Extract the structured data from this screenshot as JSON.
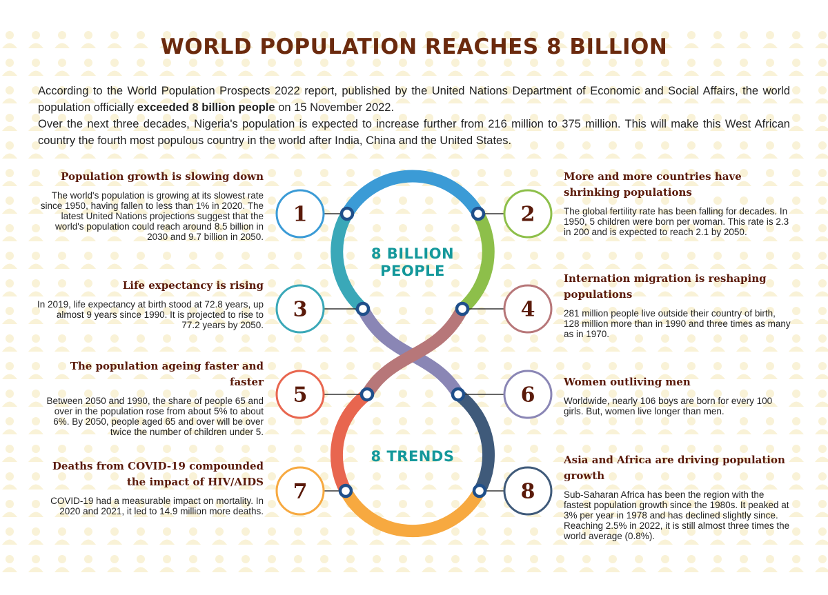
{
  "title": "WORLD POPULATION REACHES 8 BILLION",
  "intro": {
    "paragraph_1": [
      "According to the World Population Prospects 2022 report, published by the United Nations Department of Economic and Social Affairs, the world population officially ",
      "exceeded 8 billion people",
      " on 15 November 2022."
    ],
    "paragraph_2": "Over the next three decades, Nigeria's population is expected to increase further from 216 million to 375 million. This will make this West African country the fourth most populous country in the world after India, China and the United States."
  },
  "center": {
    "top_label": "8 BILLION PEOPLE",
    "bottom_label": "8 TRENDS"
  },
  "trends": [
    {
      "number": 1,
      "heading": "Population growth is slowing down",
      "body": "The world's population is growing at its slowest rate since 1950, having fallen to less than 1% in 2020. The latest United Nations projections suggest that the world's population could reach around 8.5 billion in 2030 and 9.7 billion in 2050."
    },
    {
      "number": 2,
      "heading": "More and more countries have shrinking populations",
      "body": "The global fertility rate has been falling for decades. In 1950, 5 children were born per woman. This rate is 2.3 in 200 and is expected to reach 2.1 by 2050."
    },
    {
      "number": 3,
      "heading": "Life expectancy is rising",
      "body": "In 2019, life expectancy at birth stood at 72.8 years, up almost 9 years since 1990. It is projected to rise to 77.2 years by 2050."
    },
    {
      "number": 4,
      "heading": "Internation migration is reshaping populations",
      "body": "281 million people live outside their country of birth, 128 million more than in 1990 and three times as many as in 1970."
    },
    {
      "number": 5,
      "heading": "The population ageing faster and faster",
      "body": "Between 2050 and 1990, the share of people 65 and over in the population rose from about 5% to about 6%. By 2050, people aged 65 and over will be over twice the number of children under 5."
    },
    {
      "number": 6,
      "heading": "Women outliving men",
      "body": "Worldwide, nearly 106 boys are born for every 100 girls. But, women live longer than men."
    },
    {
      "number": 7,
      "heading": "Deaths from COVID-19 compounded the impact of HIV/AIDS",
      "body": "COVID-19 had a measurable impact on mortality. In 2020 and 2021, it led to 14.9 million more deaths."
    },
    {
      "number": 8,
      "heading": "Asia and Africa are driving population growth",
      "body": "Sub-Saharan Africa has been the region with the fastest population growth since the 1980s. It peaked at 3% per year in 1978 and has declined slightly since. Reaching 2.5% in 2022, it is still almost three times the world average (0.8%)."
    }
  ]
}
